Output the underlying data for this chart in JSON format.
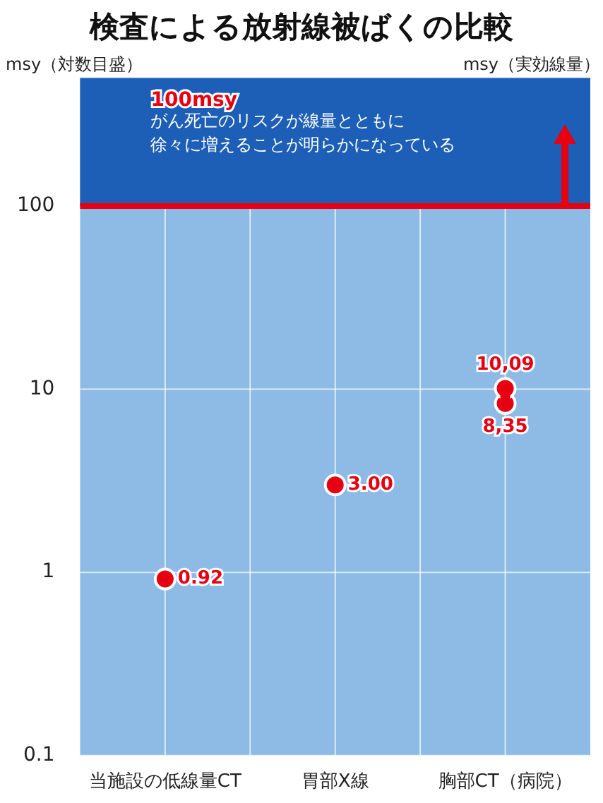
{
  "chart_data": {
    "type": "scatter",
    "title": "検査による放射線被ばくの比較",
    "ylabel": "msy（対数目盛）",
    "annotations": [
      "msy（実効線量）",
      "がん死亡のリスクが線量とともに",
      "徐々に増えることが明らかになっている"
    ],
    "categories": [
      "当施設の低線量CT",
      "胃部X線",
      "胸部CT（病院）"
    ],
    "series": [
      {
        "color": "#e60012",
        "values": [
          0.92,
          3.0,
          10.09
        ],
        "value_labels": [
          "0.92",
          "3.00",
          "10,09"
        ]
      },
      {
        "color": "#e60012",
        "values": [
          null,
          null,
          8.35
        ],
        "value_labels": [
          null,
          null,
          "8,35"
        ]
      },
      {
        "type": "line",
        "marker": "none",
        "color": "#e60012",
        "x": [
          "胸部CT（病院）",
          "胸部CT（病院）"
        ],
        "values": [
          8.35,
          10.09
        ]
      }
    ],
    "ref_lines": [
      {
        "axis": "y",
        "value": 100,
        "label": "100msy",
        "color": "#e60012"
      }
    ],
    "bands": [
      {
        "axis": "y",
        "from": 100,
        "to": 500,
        "color": "#1d5fb6"
      }
    ],
    "ylim": [
      0.1,
      500
    ],
    "yticks": [
      0.1,
      1,
      10,
      100
    ],
    "log": true,
    "grid": true,
    "marker": "circle",
    "legend": false
  }
}
